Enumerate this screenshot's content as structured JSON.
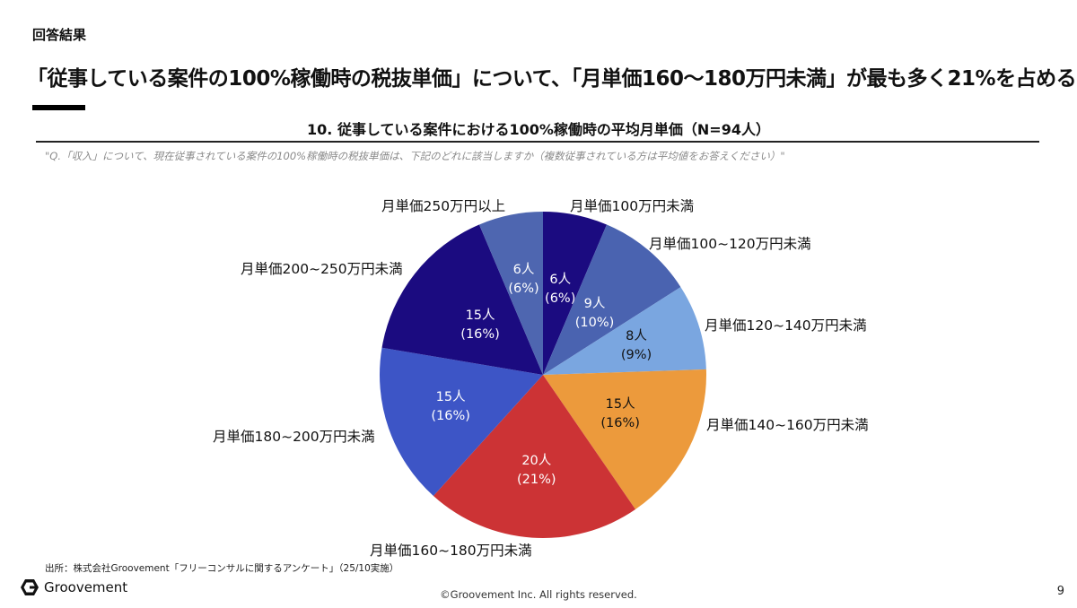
{
  "header": {
    "section_label": "回答結果",
    "headline": "「従事している案件の100%稼働時の税抜単価」について、「月単価160〜180万円未満」が最も多く21%を占める"
  },
  "chart_title": "10. 従事している案件における100%稼働時の平均月単価（N=94人）",
  "question": "\"Q.「収入」について、現在従事されている案件の100%稼働時の税抜単価は、下記のどれに該当しますか（複数従事されている方は平均値をお答えください）\"",
  "chart_data": {
    "type": "pie",
    "title": "10. 従事している案件における100%稼働時の平均月単価（N=94人）",
    "total": 94,
    "start_angle": "12 o'clock, clockwise",
    "categories": [
      "月単価100万円未満",
      "月単価100~120万円未満",
      "月単価120~140万円未満",
      "月単価140~160万円未満",
      "月単価160~180万円未満",
      "月単価180~200万円未満",
      "月単価200~250万円未満",
      "月単価250万円以上"
    ],
    "values": [
      6,
      9,
      8,
      15,
      20,
      15,
      15,
      6
    ],
    "percentages": [
      6,
      10,
      9,
      16,
      21,
      16,
      16,
      6
    ],
    "colors": [
      "#1b0b80",
      "#4a63b0",
      "#7aa6e0",
      "#ec9a3c",
      "#cc3335",
      "#3d55c6",
      "#1b0b80",
      "#4e66b0"
    ],
    "label_colors": [
      "#ffffff",
      "#ffffff",
      "#111111",
      "#111111",
      "#ffffff",
      "#ffffff",
      "#ffffff",
      "#ffffff"
    ],
    "data_labels": [
      {
        "count": "6人",
        "pct": "(6%)"
      },
      {
        "count": "9人",
        "pct": "(10%)"
      },
      {
        "count": "8人",
        "pct": "(9%)"
      },
      {
        "count": "15人",
        "pct": "(16%)"
      },
      {
        "count": "20人",
        "pct": "(21%)"
      },
      {
        "count": "15人",
        "pct": "(16%)"
      },
      {
        "count": "15人",
        "pct": "(16%)"
      },
      {
        "count": "6人",
        "pct": "(6%)"
      }
    ],
    "legend": "none (category labels placed outside slices)"
  },
  "footer": {
    "source": "出所：株式会社Groovement「フリーコンサルに関するアンケート」（25/10実施）",
    "logo_text": "Groovement",
    "copyright": "©Groovement Inc. All rights reserved.",
    "page_number": "9"
  }
}
